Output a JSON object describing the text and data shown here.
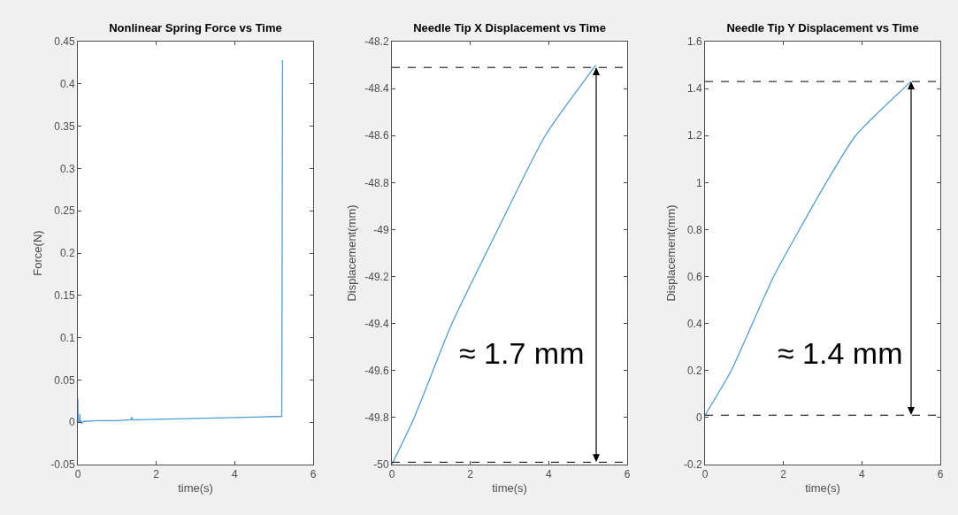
{
  "chart_data": [
    {
      "type": "line",
      "title": "Nonlinear Spring Force vs Time",
      "xlabel": "time(s)",
      "ylabel": "Force(N)",
      "xlim": [
        0,
        6
      ],
      "xticks": [
        0,
        2,
        4,
        6
      ],
      "ylim": [
        -0.05,
        0.45
      ],
      "yticks": [
        -0.05,
        0,
        0.05,
        0.1,
        0.15,
        0.2,
        0.25,
        0.3,
        0.35,
        0.4,
        0.45
      ],
      "grid": false,
      "line_style": "solid",
      "marker": "none",
      "series": [
        {
          "color": "#4d9fd6",
          "x": [
            0,
            0.005,
            0.02,
            0.04,
            0.05,
            0.06,
            0.08,
            0.1,
            0.15,
            0.5,
            1.0,
            1.35,
            1.37,
            1.39,
            1.5,
            2.5,
            3.5,
            4.5,
            5.2,
            5.21,
            5.22
          ],
          "values": [
            0.028,
            0.001,
            0.0,
            0.0,
            0.01,
            -0.001,
            0.002,
            -0.001,
            0.001,
            0.002,
            0.002,
            0.003,
            0.006,
            0.003,
            0.003,
            0.004,
            0.005,
            0.006,
            0.007,
            0.2,
            0.428
          ]
        }
      ]
    },
    {
      "type": "line",
      "title": "Needle Tip X Displacement vs Time",
      "xlabel": "time(s)",
      "ylabel": "Displacement(mm)",
      "xlim": [
        0,
        6
      ],
      "xticks": [
        0,
        2,
        4,
        6
      ],
      "ylim": [
        -50,
        -48.2
      ],
      "yticks": [
        -50,
        -49.8,
        -49.6,
        -49.4,
        -49.2,
        -49,
        -48.8,
        -48.6,
        -48.4,
        -48.2
      ],
      "grid": false,
      "line_style": "solid",
      "marker": "none",
      "series": [
        {
          "color": "#4d9fd6",
          "x": [
            0,
            0.57,
            1.53,
            2.7,
            3.91,
            5.2
          ],
          "values": [
            -50,
            -49.8,
            -49.4,
            -49,
            -48.6,
            -48.3
          ]
        }
      ],
      "ref_lines": [
        {
          "axis": "y",
          "value": -48.31,
          "color": "#000000",
          "line_style": "dashed"
        },
        {
          "axis": "y",
          "value": -49.99,
          "color": "#000000",
          "line_style": "dashed"
        }
      ],
      "annotations": [
        "≈ 1.7 mm"
      ]
    },
    {
      "type": "line",
      "title": "Needle Tip Y Displacement vs Time",
      "xlabel": "time(s)",
      "ylabel": "Displacement(mm)",
      "xlim": [
        0,
        6
      ],
      "xticks": [
        0,
        2,
        4,
        6
      ],
      "ylim": [
        -0.2,
        1.6
      ],
      "yticks": [
        -0.2,
        0,
        0.2,
        0.4,
        0.6,
        0.8,
        1,
        1.2,
        1.4,
        1.6
      ],
      "grid": false,
      "line_style": "solid",
      "marker": "none",
      "series": [
        {
          "color": "#4d9fd6",
          "x": [
            0,
            0.67,
            1.75,
            3.09,
            3.84,
            5.25
          ],
          "values": [
            0.01,
            0.2,
            0.6,
            1.0,
            1.2,
            1.43
          ]
        }
      ],
      "ref_lines": [
        {
          "axis": "y",
          "value": 1.43,
          "color": "#000000",
          "line_style": "dashed"
        },
        {
          "axis": "y",
          "value": 0.01,
          "color": "#000000",
          "line_style": "dashed"
        }
      ],
      "annotations": [
        "≈ 1.4 mm"
      ]
    }
  ]
}
